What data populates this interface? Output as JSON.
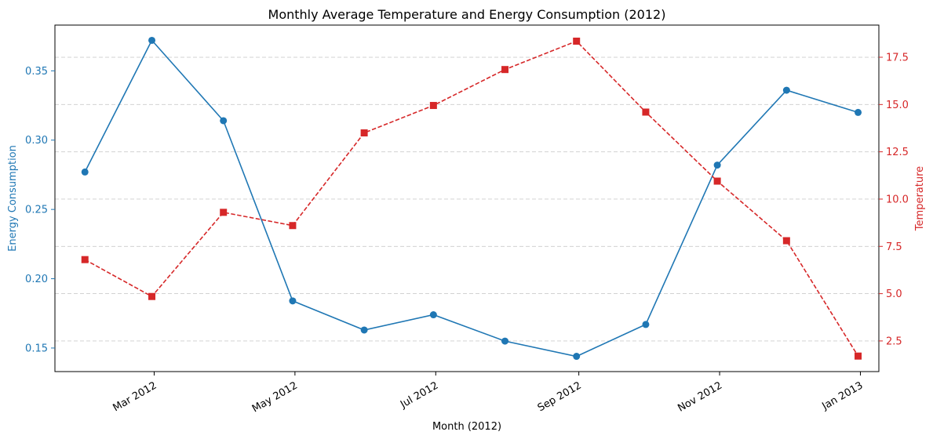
{
  "chart_data": {
    "type": "line",
    "title": "Monthly Average Temperature and Energy Consumption (2012)",
    "xlabel": "Month (2012)",
    "ylabel_left": "Energy Consumption",
    "ylabel_right": "Temperature",
    "x": [
      "2012-01-31",
      "2012-02-29",
      "2012-03-31",
      "2012-04-30",
      "2012-05-31",
      "2012-06-30",
      "2012-07-31",
      "2012-08-31",
      "2012-09-30",
      "2012-10-31",
      "2012-11-30",
      "2012-12-31"
    ],
    "x_ticks": [
      {
        "date": "2012-03-01",
        "label": "Mar 2012"
      },
      {
        "date": "2012-05-01",
        "label": "May 2012"
      },
      {
        "date": "2012-07-01",
        "label": "Jul 2012"
      },
      {
        "date": "2012-09-01",
        "label": "Sep 2012"
      },
      {
        "date": "2012-11-01",
        "label": "Nov 2012"
      },
      {
        "date": "2013-01-01",
        "label": "Jan 2013"
      }
    ],
    "xlim": [
      "2012-01-18",
      "2013-01-09"
    ],
    "series": [
      {
        "name": "Energy Consumption",
        "axis": "left",
        "color": "#1f77b4",
        "line_style": "solid",
        "marker": "circle",
        "values": [
          0.277,
          0.372,
          0.314,
          0.184,
          0.163,
          0.174,
          0.155,
          0.144,
          0.167,
          0.282,
          0.336,
          0.32
        ]
      },
      {
        "name": "Temperature",
        "axis": "right",
        "color": "#d62728",
        "line_style": "dashed",
        "marker": "square",
        "values": [
          6.8,
          4.85,
          9.3,
          8.6,
          13.5,
          14.95,
          16.85,
          18.35,
          14.6,
          10.95,
          7.8,
          1.7
        ]
      }
    ],
    "ylim_left": [
      0.133,
      0.383
    ],
    "yticks_left": [
      "0.15",
      "0.20",
      "0.25",
      "0.30",
      "0.35"
    ],
    "ylim_right": [
      0.88,
      19.2
    ],
    "yticks_right": [
      "2.5",
      "5.0",
      "7.5",
      "10.0",
      "12.5",
      "15.0",
      "17.5"
    ],
    "grid": "horizontal-dashed",
    "legend": "none"
  }
}
